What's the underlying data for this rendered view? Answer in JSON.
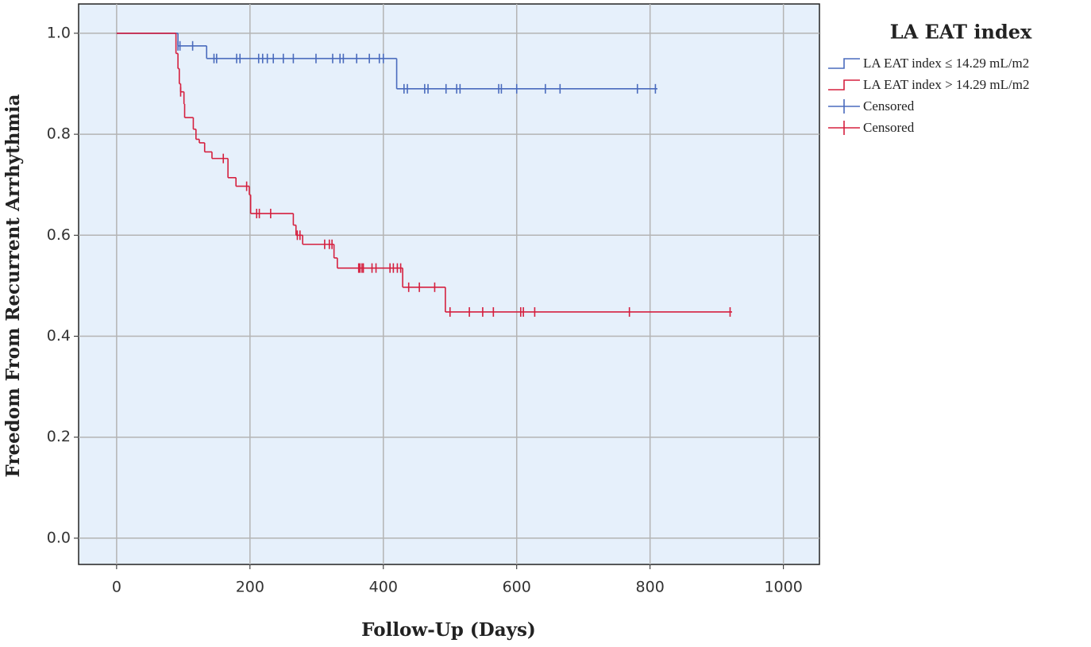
{
  "chart_data": {
    "type": "kaplan-meier",
    "x_label": "Follow-Up (Days)",
    "y_label": "Freedom From Recurrent Arrhythmia",
    "legend_title": "LA EAT index",
    "legend_position": "right",
    "grid": true,
    "background": "#e6f0fb",
    "xlim": [
      -57,
      1054
    ],
    "ylim": [
      -0.052,
      1.058
    ],
    "xticks": [
      0,
      200,
      400,
      600,
      800,
      1000
    ],
    "yticks": [
      {
        "value": 0,
        "label": "0.0"
      },
      0.2,
      0.4,
      0.6,
      0.8,
      {
        "value": 1,
        "label": "1.0"
      }
    ],
    "series": [
      {
        "name": "LA EAT index ≤ 14.29 mL/m2",
        "style": "step",
        "color": "#4a6bbd",
        "x": [
          0,
          92,
          135,
          420,
          811
        ],
        "values": [
          1.0,
          0.975,
          0.95,
          0.89,
          0.89
        ]
      },
      {
        "name": "LA EAT index > 14.29 mL/m2",
        "style": "step",
        "color": "#d5203f",
        "x": [
          0,
          89,
          92,
          94,
          96,
          101,
          102,
          115,
          119,
          124,
          132,
          143,
          167,
          179,
          199,
          201,
          265,
          269,
          279,
          326,
          331,
          429,
          493,
          923
        ],
        "values": [
          1.0,
          0.96,
          0.93,
          0.9,
          0.884,
          0.86,
          0.833,
          0.81,
          0.79,
          0.783,
          0.765,
          0.752,
          0.714,
          0.697,
          0.68,
          0.643,
          0.62,
          0.6,
          0.582,
          0.555,
          0.535,
          0.497,
          0.448,
          0.448
        ]
      },
      {
        "name": "Censored",
        "style": "censor",
        "color": "#4a6bbd",
        "x": [
          92,
          95,
          114,
          146,
          150,
          180,
          185,
          213,
          219,
          226,
          235,
          250,
          265,
          299,
          324,
          335,
          340,
          360,
          379,
          394,
          400,
          431,
          436,
          462,
          467,
          494,
          510,
          515,
          573,
          577,
          600,
          643,
          665,
          781,
          808
        ],
        "values": [
          0.975,
          0.975,
          0.975,
          0.95,
          0.95,
          0.95,
          0.95,
          0.95,
          0.95,
          0.95,
          0.95,
          0.95,
          0.95,
          0.95,
          0.95,
          0.95,
          0.95,
          0.95,
          0.95,
          0.95,
          0.95,
          0.89,
          0.89,
          0.89,
          0.89,
          0.89,
          0.89,
          0.89,
          0.89,
          0.89,
          0.89,
          0.89,
          0.89,
          0.89,
          0.89
        ]
      },
      {
        "name": "Censored",
        "style": "censor",
        "color": "#d5203f",
        "x": [
          96,
          160,
          195,
          210,
          214,
          231,
          271,
          275,
          312,
          319,
          323,
          363,
          365,
          368,
          370,
          383,
          389,
          410,
          415,
          421,
          426,
          438,
          454,
          477,
          500,
          529,
          549,
          565,
          606,
          610,
          627,
          769,
          920
        ],
        "values": [
          0.884,
          0.752,
          0.697,
          0.643,
          0.643,
          0.643,
          0.6,
          0.6,
          0.582,
          0.582,
          0.582,
          0.535,
          0.535,
          0.535,
          0.535,
          0.535,
          0.535,
          0.535,
          0.535,
          0.535,
          0.535,
          0.497,
          0.497,
          0.497,
          0.448,
          0.448,
          0.448,
          0.448,
          0.448,
          0.448,
          0.448,
          0.448,
          0.448
        ]
      }
    ]
  }
}
